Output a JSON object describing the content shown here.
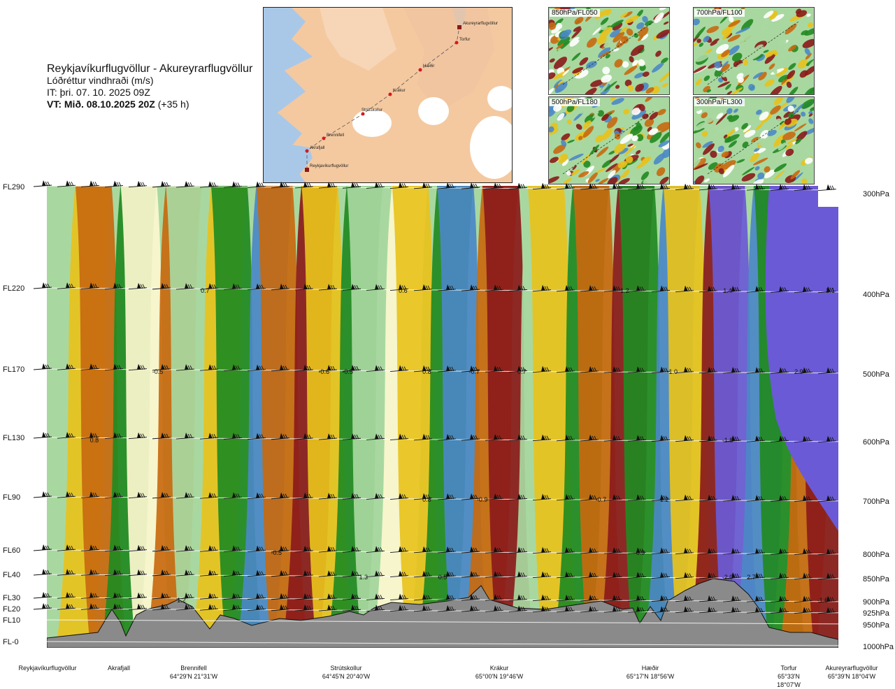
{
  "header": {
    "title": "Reykjavíkurflugvöllur - Akureyrarflugvöllur",
    "subtitle": "Lóðréttur vindhraði (m/s)",
    "issue_time": "IT: þri. 07. 10. 2025 09Z",
    "valid_time": "VT: Mið. 08.10.2025 20Z",
    "valid_offset": "(+35 h)"
  },
  "route_map": {
    "points": [
      "Akureyrarflugvöllur",
      "Torfur",
      "Hæðir",
      "Krákur",
      "Strútskollur",
      "Brennifell",
      "Akrafjall",
      "Reykjavíkurflugvöllur"
    ]
  },
  "mini_maps": [
    {
      "label": "850hPa/FL050"
    },
    {
      "label": "700hPa/FL100"
    },
    {
      "label": "500hPa/FL180"
    },
    {
      "label": "300hPa/FL300"
    }
  ],
  "left_axis": [
    "FL290",
    "FL220",
    "FL170",
    "FL130",
    "FL90",
    "FL60",
    "FL40",
    "FL30",
    "FL20",
    "FL10",
    "FL-0"
  ],
  "right_axis": [
    "300hPa",
    "400hPa",
    "500hPa",
    "600hPa",
    "700hPa",
    "800hPa",
    "850hPa",
    "900hPa",
    "925hPa",
    "950hPa",
    "1000hPa"
  ],
  "waypoints": [
    {
      "name": "Reykjavíkurflugvöllur",
      "coord": ""
    },
    {
      "name": "Akrafjall",
      "coord": ""
    },
    {
      "name": "Brennifell",
      "coord": "64°29'N 21°31'W"
    },
    {
      "name": "Strútskollur",
      "coord": "64°45'N 20°40'W"
    },
    {
      "name": "Krákur",
      "coord": "65°00'N 19°46'W"
    },
    {
      "name": "Hæðir",
      "coord": "65°17'N 18°56'W"
    },
    {
      "name": "Torfur",
      "coord": "65°33'N 18°07'W"
    },
    {
      "name": "Akureyrarflugvöllur",
      "coord": "65°39'N 18°04'W"
    }
  ],
  "colors": {
    "strong_down": "#8b1a1a",
    "down_mid": "#c8690f",
    "down_weak": "#e8c21c",
    "neutral": "#fdf7cf",
    "up_weak": "#a8d8a0",
    "up_mid": "#218a21",
    "strong_up": "#4b88c6",
    "very_strong_up": "#6a5ad6",
    "terrain": "#888888"
  },
  "chart_data": {
    "type": "heatmap",
    "title": "Lóðréttur vindhraði (m/s)",
    "x": [
      "Reykjavíkurflugvöllur",
      "Akrafjall",
      "Brennifell",
      "Strútskollur",
      "Krákur",
      "Hæðir",
      "Torfur",
      "Akureyrarflugvöllur"
    ],
    "y_left": [
      "FL-0",
      "FL10",
      "FL20",
      "FL30",
      "FL40",
      "FL60",
      "FL90",
      "FL130",
      "FL170",
      "FL220",
      "FL290"
    ],
    "y_right": [
      "1000hPa",
      "950hPa",
      "925hPa",
      "900hPa",
      "850hPa",
      "800hPa",
      "700hPa",
      "600hPa",
      "500hPa",
      "400hPa",
      "300hPa"
    ],
    "annotations": [
      {
        "level": "FL220",
        "position": 0.2,
        "text": "0.7"
      },
      {
        "level": "FL220",
        "position": 0.45,
        "text": "0.6"
      },
      {
        "level": "FL220",
        "position": 0.73,
        "text": "1.2"
      },
      {
        "level": "FL220",
        "position": 0.86,
        "text": "1.4"
      },
      {
        "level": "FL220",
        "position": 0.99,
        "text": "2.1"
      },
      {
        "level": "FL170",
        "position": 0.14,
        "text": "-0.5"
      },
      {
        "level": "FL170",
        "position": 0.35,
        "text": "-0.6"
      },
      {
        "level": "FL170",
        "position": 0.38,
        "text": "-0.5"
      },
      {
        "level": "FL170",
        "position": 0.48,
        "text": "0.8"
      },
      {
        "level": "FL170",
        "position": 0.54,
        "text": "-0.7"
      },
      {
        "level": "FL170",
        "position": 0.6,
        "text": "0.7"
      },
      {
        "level": "FL170",
        "position": 0.79,
        "text": "-1.0"
      },
      {
        "level": "FL170",
        "position": 0.95,
        "text": "2.9"
      },
      {
        "level": "FL130",
        "position": 0.06,
        "text": "0.8"
      },
      {
        "level": "FL130",
        "position": 0.86,
        "text": "-1.8"
      },
      {
        "level": "FL90",
        "position": 0.48,
        "text": "0.8"
      },
      {
        "level": "FL90",
        "position": 0.55,
        "text": "-0.9"
      },
      {
        "level": "FL90",
        "position": 0.7,
        "text": "-0.7"
      },
      {
        "level": "FL90",
        "position": 0.78,
        "text": "1.2"
      },
      {
        "level": "FL60",
        "position": 0.29,
        "text": "-0.5"
      },
      {
        "level": "FL60",
        "position": 0.75,
        "text": "0.9"
      },
      {
        "level": "FL40",
        "position": 0.4,
        "text": "1.3"
      },
      {
        "level": "FL40",
        "position": 0.5,
        "text": "0.5"
      },
      {
        "level": "FL40",
        "position": 0.86,
        "text": "-2.0"
      },
      {
        "level": "FL40",
        "position": 0.89,
        "text": "2.7"
      },
      {
        "level": "FL30",
        "position": 0.17,
        "text": "1.2"
      },
      {
        "level": "FL30",
        "position": 0.98,
        "text": "-1.6"
      }
    ]
  }
}
